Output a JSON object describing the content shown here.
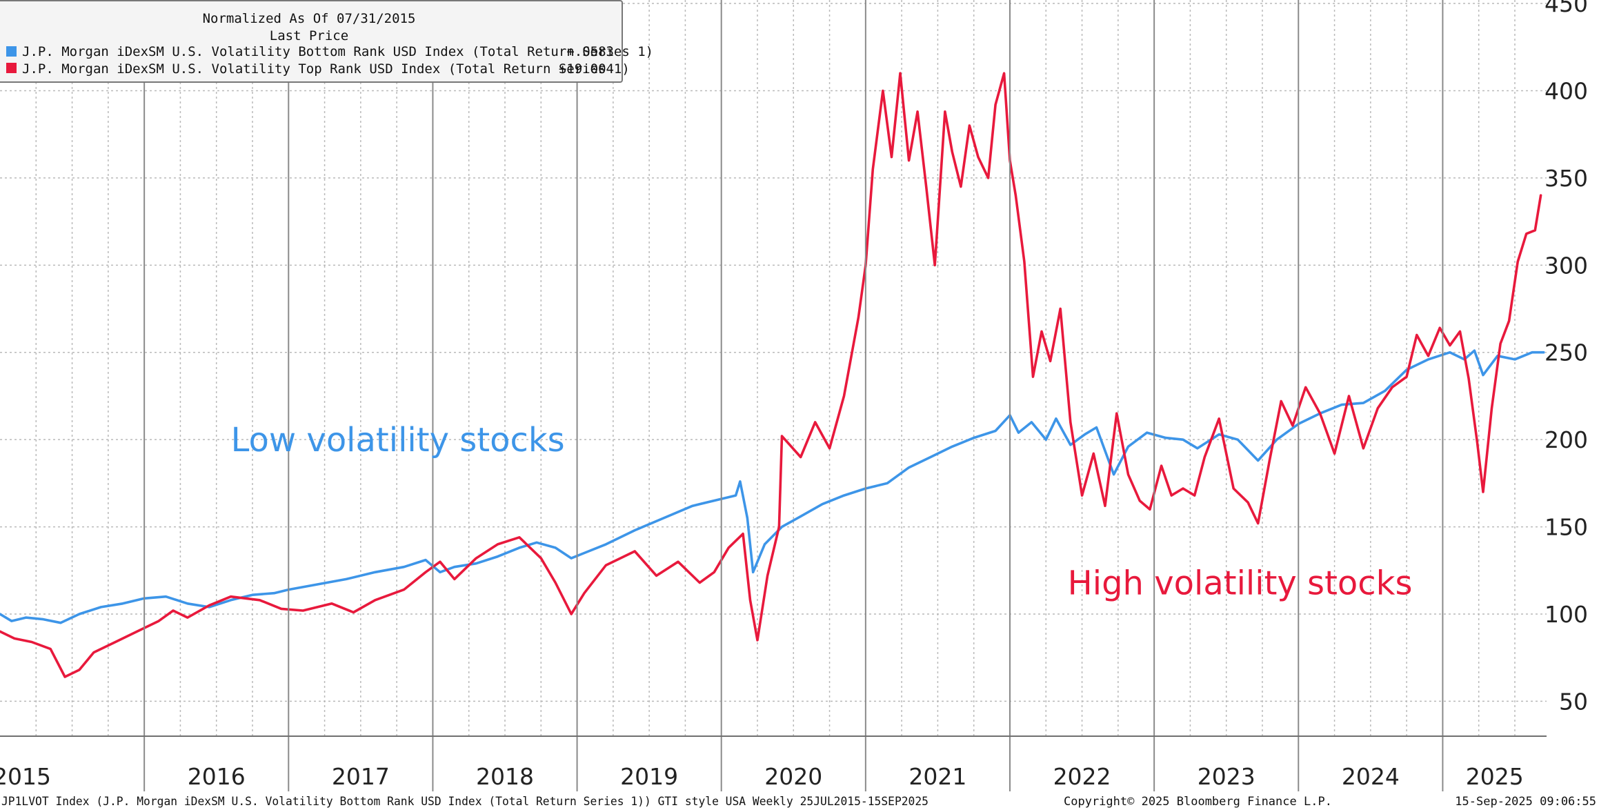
{
  "chart_data": {
    "type": "line",
    "ylim": [
      30,
      452
    ],
    "y_ticks": [
      50,
      100,
      150,
      200,
      250,
      300,
      350,
      400,
      450
    ],
    "x_range": [
      2015.0,
      2025.72
    ],
    "year_labels": [
      "2015",
      "2016",
      "2017",
      "2018",
      "2019",
      "2020",
      "2021",
      "2022",
      "2023",
      "2024",
      "2025"
    ],
    "year_separators": [
      2016.0,
      2017.0,
      2018.0,
      2019.0,
      2020.0,
      2021.0,
      2022.0,
      2023.0,
      2024.0,
      2025.0
    ],
    "legend": {
      "title": "Normalized As Of 07/31/2015",
      "subtitle": "Last Price",
      "entries": [
        {
          "label": "J.P. Morgan iDexSM U.S. Volatility Bottom Rank USD Index (Total Return Series 1)",
          "value": "+.0583",
          "color": "#3d95e8"
        },
        {
          "label": "J.P. Morgan iDexSM U.S. Volatility Top Rank USD Index (Total Return Series 1)",
          "value": "+19.004",
          "color": "#e8193c"
        }
      ]
    },
    "annotations": [
      {
        "text": "Low volatility stocks",
        "color": "#3d95e8",
        "x": 2016.6,
        "y": 200
      },
      {
        "text": "High volatility stocks",
        "color": "#e8193c",
        "x": 2022.4,
        "y": 118
      }
    ],
    "series": [
      {
        "name": "J.P. Morgan iDexSM U.S. Volatility Bottom Rank USD Index (Total Return Series 1)",
        "color": "#3d95e8",
        "points": [
          [
            2015.0,
            100
          ],
          [
            2015.08,
            96
          ],
          [
            2015.18,
            98
          ],
          [
            2015.3,
            97
          ],
          [
            2015.42,
            95
          ],
          [
            2015.55,
            100
          ],
          [
            2015.7,
            104
          ],
          [
            2015.85,
            106
          ],
          [
            2016.0,
            109
          ],
          [
            2016.15,
            110
          ],
          [
            2016.3,
            106
          ],
          [
            2016.45,
            104
          ],
          [
            2016.6,
            108
          ],
          [
            2016.75,
            111
          ],
          [
            2016.9,
            112
          ],
          [
            2017.0,
            114
          ],
          [
            2017.2,
            117
          ],
          [
            2017.4,
            120
          ],
          [
            2017.6,
            124
          ],
          [
            2017.8,
            127
          ],
          [
            2017.95,
            131
          ],
          [
            2018.05,
            124
          ],
          [
            2018.15,
            127
          ],
          [
            2018.3,
            129
          ],
          [
            2018.45,
            133
          ],
          [
            2018.6,
            138
          ],
          [
            2018.72,
            141
          ],
          [
            2018.85,
            138
          ],
          [
            2018.96,
            132
          ],
          [
            2019.05,
            135
          ],
          [
            2019.2,
            140
          ],
          [
            2019.4,
            148
          ],
          [
            2019.6,
            155
          ],
          [
            2019.8,
            162
          ],
          [
            2020.0,
            166
          ],
          [
            2020.1,
            168
          ],
          [
            2020.13,
            176
          ],
          [
            2020.18,
            155
          ],
          [
            2020.22,
            124
          ],
          [
            2020.3,
            140
          ],
          [
            2020.42,
            150
          ],
          [
            2020.55,
            156
          ],
          [
            2020.7,
            163
          ],
          [
            2020.85,
            168
          ],
          [
            2021.0,
            172
          ],
          [
            2021.15,
            175
          ],
          [
            2021.3,
            184
          ],
          [
            2021.45,
            190
          ],
          [
            2021.6,
            196
          ],
          [
            2021.75,
            201
          ],
          [
            2021.9,
            205
          ],
          [
            2022.0,
            214
          ],
          [
            2022.06,
            204
          ],
          [
            2022.15,
            210
          ],
          [
            2022.25,
            200
          ],
          [
            2022.32,
            212
          ],
          [
            2022.42,
            197
          ],
          [
            2022.52,
            203
          ],
          [
            2022.6,
            207
          ],
          [
            2022.72,
            180
          ],
          [
            2022.82,
            196
          ],
          [
            2022.95,
            204
          ],
          [
            2023.08,
            201
          ],
          [
            2023.2,
            200
          ],
          [
            2023.3,
            195
          ],
          [
            2023.45,
            203
          ],
          [
            2023.58,
            200
          ],
          [
            2023.72,
            188
          ],
          [
            2023.85,
            200
          ],
          [
            2024.0,
            209
          ],
          [
            2024.15,
            215
          ],
          [
            2024.3,
            220
          ],
          [
            2024.45,
            221
          ],
          [
            2024.6,
            228
          ],
          [
            2024.75,
            240
          ],
          [
            2024.9,
            246
          ],
          [
            2025.05,
            250
          ],
          [
            2025.15,
            246
          ],
          [
            2025.22,
            251
          ],
          [
            2025.28,
            237
          ],
          [
            2025.38,
            248
          ],
          [
            2025.5,
            246
          ],
          [
            2025.62,
            250
          ],
          [
            2025.7,
            250
          ]
        ]
      },
      {
        "name": "J.P. Morgan iDexSM U.S. Volatility Top Rank USD Index (Total Return Series 1)",
        "color": "#e8193c",
        "points": [
          [
            2015.0,
            90
          ],
          [
            2015.1,
            86
          ],
          [
            2015.22,
            84
          ],
          [
            2015.35,
            80
          ],
          [
            2015.45,
            64
          ],
          [
            2015.55,
            68
          ],
          [
            2015.65,
            78
          ],
          [
            2015.8,
            84
          ],
          [
            2015.95,
            90
          ],
          [
            2016.1,
            96
          ],
          [
            2016.2,
            102
          ],
          [
            2016.3,
            98
          ],
          [
            2016.45,
            105
          ],
          [
            2016.6,
            110
          ],
          [
            2016.8,
            108
          ],
          [
            2016.95,
            103
          ],
          [
            2017.1,
            102
          ],
          [
            2017.3,
            106
          ],
          [
            2017.45,
            101
          ],
          [
            2017.6,
            108
          ],
          [
            2017.8,
            114
          ],
          [
            2017.95,
            124
          ],
          [
            2018.05,
            130
          ],
          [
            2018.15,
            120
          ],
          [
            2018.3,
            132
          ],
          [
            2018.45,
            140
          ],
          [
            2018.6,
            144
          ],
          [
            2018.75,
            132
          ],
          [
            2018.85,
            118
          ],
          [
            2018.96,
            100
          ],
          [
            2019.05,
            112
          ],
          [
            2019.2,
            128
          ],
          [
            2019.4,
            136
          ],
          [
            2019.55,
            122
          ],
          [
            2019.7,
            130
          ],
          [
            2019.85,
            118
          ],
          [
            2019.95,
            124
          ],
          [
            2020.05,
            138
          ],
          [
            2020.15,
            146
          ],
          [
            2020.2,
            108
          ],
          [
            2020.25,
            85
          ],
          [
            2020.32,
            122
          ],
          [
            2020.4,
            150
          ],
          [
            2020.42,
            202
          ],
          [
            2020.55,
            190
          ],
          [
            2020.65,
            210
          ],
          [
            2020.75,
            195
          ],
          [
            2020.85,
            225
          ],
          [
            2020.95,
            270
          ],
          [
            2021.0,
            300
          ],
          [
            2021.05,
            355
          ],
          [
            2021.12,
            400
          ],
          [
            2021.18,
            362
          ],
          [
            2021.24,
            410
          ],
          [
            2021.3,
            360
          ],
          [
            2021.36,
            388
          ],
          [
            2021.42,
            345
          ],
          [
            2021.48,
            300
          ],
          [
            2021.55,
            388
          ],
          [
            2021.6,
            365
          ],
          [
            2021.66,
            345
          ],
          [
            2021.72,
            380
          ],
          [
            2021.78,
            362
          ],
          [
            2021.85,
            350
          ],
          [
            2021.9,
            392
          ],
          [
            2021.96,
            410
          ],
          [
            2022.0,
            360
          ],
          [
            2022.04,
            340
          ],
          [
            2022.1,
            302
          ],
          [
            2022.16,
            236
          ],
          [
            2022.22,
            262
          ],
          [
            2022.28,
            245
          ],
          [
            2022.35,
            275
          ],
          [
            2022.42,
            210
          ],
          [
            2022.5,
            168
          ],
          [
            2022.58,
            192
          ],
          [
            2022.66,
            162
          ],
          [
            2022.74,
            215
          ],
          [
            2022.82,
            180
          ],
          [
            2022.9,
            165
          ],
          [
            2022.97,
            160
          ],
          [
            2023.05,
            185
          ],
          [
            2023.12,
            168
          ],
          [
            2023.2,
            172
          ],
          [
            2023.28,
            168
          ],
          [
            2023.35,
            190
          ],
          [
            2023.45,
            212
          ],
          [
            2023.55,
            172
          ],
          [
            2023.65,
            164
          ],
          [
            2023.72,
            152
          ],
          [
            2023.8,
            188
          ],
          [
            2023.88,
            222
          ],
          [
            2023.96,
            208
          ],
          [
            2024.05,
            230
          ],
          [
            2024.15,
            215
          ],
          [
            2024.25,
            192
          ],
          [
            2024.35,
            225
          ],
          [
            2024.45,
            195
          ],
          [
            2024.55,
            218
          ],
          [
            2024.65,
            230
          ],
          [
            2024.75,
            236
          ],
          [
            2024.82,
            260
          ],
          [
            2024.9,
            248
          ],
          [
            2024.98,
            264
          ],
          [
            2025.05,
            254
          ],
          [
            2025.12,
            262
          ],
          [
            2025.18,
            235
          ],
          [
            2025.24,
            198
          ],
          [
            2025.28,
            170
          ],
          [
            2025.34,
            218
          ],
          [
            2025.4,
            255
          ],
          [
            2025.46,
            268
          ],
          [
            2025.52,
            302
          ],
          [
            2025.58,
            318
          ],
          [
            2025.64,
            320
          ],
          [
            2025.68,
            340
          ]
        ]
      }
    ],
    "footer": {
      "left": "JP1LVOT Index (J.P. Morgan iDexSM U.S. Volatility Bottom Rank USD Index (Total Return Series 1)) GTI style USA  Weekly 25JUL2015-15SEP2025",
      "center": "Copyright© 2025 Bloomberg Finance L.P.",
      "right": "15-Sep-2025 09:06:55"
    }
  }
}
